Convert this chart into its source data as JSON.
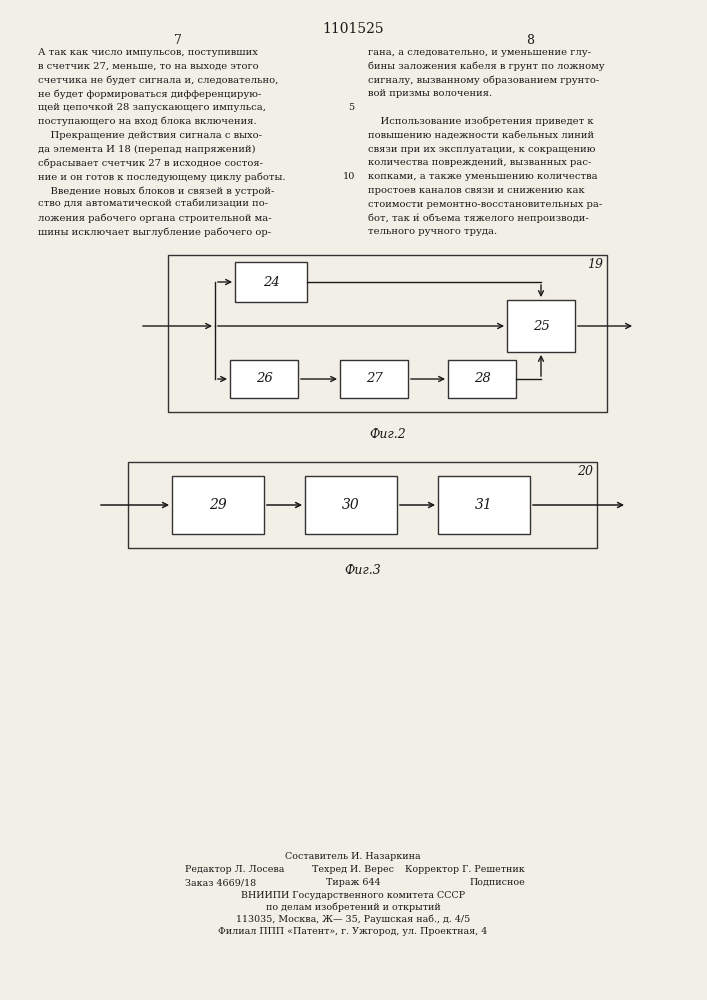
{
  "bg_color": "#f2efe6",
  "title": "1101525",
  "page_left": "7",
  "page_right": "8",
  "text_left": [
    "А так как число импульсов, поступивших",
    "в счетчик 27, меньше, то на выходе этого",
    "счетчика не будет сигнала и, следовательно,",
    "не будет формироваться дифференцирую-",
    "щей цепочкой 28 запускающего импульса,",
    "поступающего на вход блока включения.",
    "    Прекращение действия сигнала с выхо-",
    "да элемента И 18 (перепад напряжений)",
    "сбрасывает счетчик 27 в исходное состоя-",
    "ние и он готов к последующему циклу работы.",
    "    Введение новых блоков и связей в устрой-",
    "ство для автоматической стабилизации по-",
    "ложения рабочего органа строительной ма-",
    "шины исключает выглубление рабочего ор-"
  ],
  "text_right": [
    "гана, а следовательно, и уменьшение глу-",
    "бины заложения кабеля в грунт по ложному",
    "сигналу, вызванному образованием грунто-",
    "вой призмы волочения.",
    "",
    "    Использование изобретения приведет к",
    "повышению надежности кабельных линий",
    "связи при их эксплуатации, к сокращению",
    "количества повреждений, вызванных рас-",
    "копками, а также уменьшению количества",
    "простоев каналов связи и снижению как",
    "стоимости ремонтно-восстановительных ра-",
    "бот, так и́ объема тяжелого непроизводи-",
    "тельного ручного труда."
  ],
  "fig2_label": "Фиг.2",
  "fig3_label": "Фиг.3",
  "fig2_number": "19",
  "fig3_number": "20",
  "line_num_5": "5",
  "line_num_10": "10",
  "footer_line0": "Составитель И. Назаркина",
  "footer_editor": "Редактор Л. Лосева",
  "footer_techred": "Техред И. Верес",
  "footer_correktor": "Корректор Г. Решетник",
  "footer_zakaz": "Заказ 4669/18",
  "footer_tirazh": "Тираж 644",
  "footer_podpisnoe": "Подписное",
  "footer_vniip": "ВНИИПИ Государственного комитета СССР",
  "footer_po": "по делам изобретений и открытий",
  "footer_addr": "113035, Москва, Ж— 35, Раушская наб., д. 4/5",
  "footer_filial": "Филиал ППП «Патент», г. Ужгород, ул. Проектная, 4"
}
